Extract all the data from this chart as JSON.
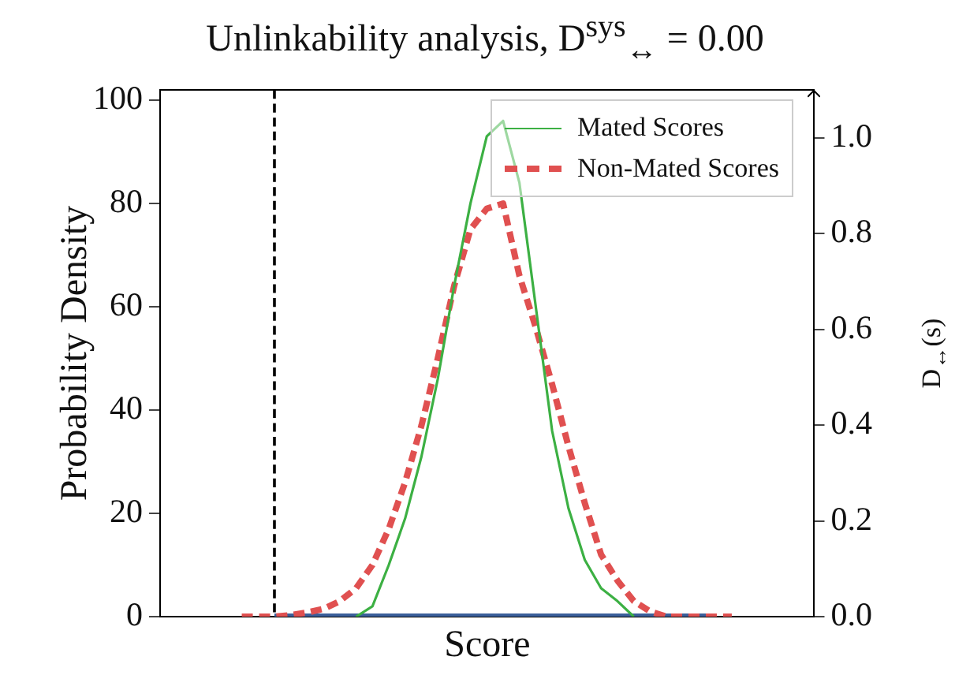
{
  "chart_data": {
    "type": "line",
    "title": "Unlinkability analysis, D$^{sys}$$_{↔}$ = 0.00",
    "xlabel": "Score",
    "ylabel": "Probability Density",
    "y2label": "D$_{↔}$(s)",
    "categories": [
      null,
      null,
      null,
      null,
      null,
      null,
      null,
      null,
      null,
      null,
      null,
      null,
      null,
      null,
      null,
      null,
      null,
      null,
      null,
      null,
      null,
      null,
      null,
      null,
      null,
      null,
      null,
      null,
      null,
      null,
      null,
      null,
      null,
      null,
      null,
      null,
      null,
      null,
      null,
      null,
      null
    ],
    "series": [
      {
        "name": "Mated Scores",
        "color": "#3cb043",
        "line_style": "solid",
        "values": [
          null,
          null,
          null,
          null,
          null,
          null,
          null,
          null,
          null,
          null,
          null,
          null,
          0,
          2,
          10,
          19,
          31,
          46,
          64,
          80,
          93,
          96,
          84,
          60,
          36,
          21,
          11,
          5.5,
          3,
          0,
          null,
          null,
          null,
          null,
          null,
          null,
          null,
          null,
          null,
          null,
          null
        ]
      },
      {
        "name": "Non-Mated Scores",
        "color": "#e05050",
        "line_style": "dashed",
        "values": [
          null,
          null,
          null,
          null,
          null,
          0,
          0,
          0,
          0.3,
          0.8,
          1.5,
          3,
          5.5,
          10,
          17,
          26,
          37,
          50,
          64,
          75,
          79,
          80,
          66,
          56,
          45,
          33,
          22,
          12,
          7,
          3,
          1,
          0,
          0,
          0,
          0,
          0,
          null,
          null,
          null,
          null,
          null
        ]
      },
      {
        "color": "#3b5f9a",
        "axis": "y2",
        "line_style": "solid",
        "values": [
          null,
          null,
          null,
          null,
          null,
          null,
          null,
          0,
          0,
          0,
          0,
          0,
          0,
          0,
          0,
          0,
          0,
          0,
          0,
          0,
          0,
          0,
          0,
          0,
          0,
          0,
          0,
          0,
          0,
          0,
          0,
          0,
          0,
          0,
          0,
          null,
          null,
          null,
          null,
          null,
          null
        ]
      }
    ],
    "ylim": [
      0,
      102
    ],
    "yticks": [
      0,
      20,
      40,
      60,
      80,
      100
    ],
    "y2lim": [
      0,
      1.1
    ],
    "y2ticks": [
      {
        "value": 0,
        "label": "0.0"
      },
      {
        "value": 0.2,
        "label": "0.2"
      },
      {
        "value": 0.4,
        "label": "0.4"
      },
      {
        "value": 0.6,
        "label": "0.6"
      },
      {
        "value": 0.8,
        "label": "0.8"
      },
      {
        "value": 1,
        "label": "1.0"
      }
    ],
    "legend": "top right"
  }
}
